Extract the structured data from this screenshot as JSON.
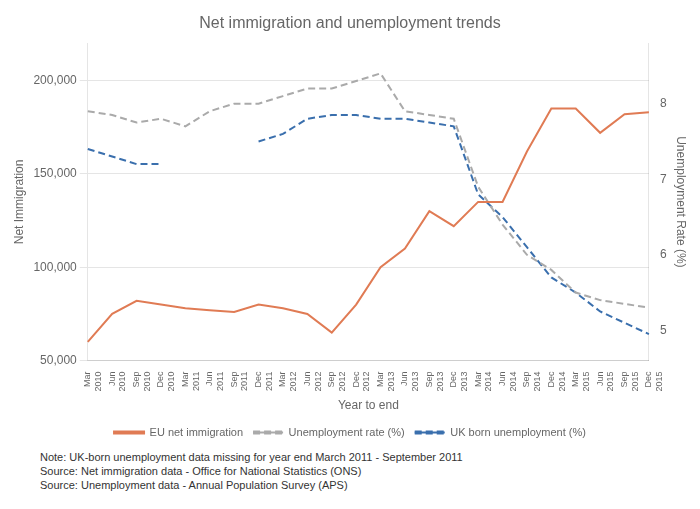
{
  "chart_data": {
    "type": "line",
    "title": "Net immigration and unemployment trends",
    "xlabel": "Year to end",
    "ylabel": "Net Immigration",
    "y2label": "Unemployment Rate (%)",
    "categories": [
      "Mar\n2010",
      "Jun\n2010",
      "Sep\n2010",
      "Dec\n2010",
      "Mar\n2011",
      "Jun\n2011",
      "Sep\n2011",
      "Dec\n2011",
      "Mar\n2012",
      "Jun\n2012",
      "Sep\n2012",
      "Dec\n2012",
      "Mar\n2013",
      "Jun\n2013",
      "Sep\n2013",
      "Dec\n2013",
      "Mar\n2014",
      "Jun\n2014",
      "Sep\n2014",
      "Dec\n2014",
      "Mar\n2015",
      "Jun\n2015",
      "Sep\n2015",
      "Dec\n2015"
    ],
    "series": [
      {
        "name": "EU net immigration",
        "color": "#e07b54",
        "line_style": "solid",
        "axis": "y",
        "values": [
          60000,
          75000,
          82000,
          80000,
          78000,
          77000,
          76000,
          80000,
          78000,
          75000,
          65000,
          80000,
          100000,
          110000,
          130000,
          122000,
          135000,
          135000,
          162000,
          185000,
          185000,
          172000,
          182000,
          183000
        ]
      },
      {
        "name": "Unemployment rate (%)",
        "color": "#aaaaaa",
        "line_style": "dashed",
        "axis": "y2",
        "values": [
          7.9,
          7.85,
          7.75,
          7.8,
          7.7,
          7.9,
          8.0,
          8.0,
          8.1,
          8.2,
          8.2,
          8.3,
          8.4,
          7.9,
          7.85,
          7.8,
          6.9,
          6.4,
          6.0,
          5.8,
          5.5,
          5.4,
          5.35,
          5.3
        ]
      },
      {
        "name": "UK born unemployment (%)",
        "color": "#3a6fad",
        "line_style": "dashed",
        "axis": "y2",
        "values": [
          7.4,
          7.3,
          7.2,
          7.2,
          null,
          null,
          null,
          7.5,
          7.6,
          7.8,
          7.85,
          7.85,
          7.8,
          7.8,
          7.75,
          7.7,
          6.8,
          6.5,
          6.1,
          5.7,
          5.5,
          5.25,
          5.1,
          4.95
        ]
      }
    ],
    "ylim": [
      50000,
      220000
    ],
    "yticks": [
      {
        "value": 50000,
        "label": "50,000"
      },
      {
        "value": 100000,
        "label": "100,000"
      },
      {
        "value": 150000,
        "label": "150,000"
      },
      {
        "value": 200000,
        "label": "200,000"
      }
    ],
    "y2lim": [
      4.6,
      8.8
    ],
    "y2ticks": [
      5,
      6,
      7,
      8
    ],
    "grid": true,
    "legend": "bottom",
    "annotations": [
      "Note: UK-born unemployment data missing for year end March 2011 - September 2011\nSource: Net immigration data - Office for National Statistics (ONS)\nSource: Unemployment data - Annual Population Survey (APS)"
    ]
  }
}
